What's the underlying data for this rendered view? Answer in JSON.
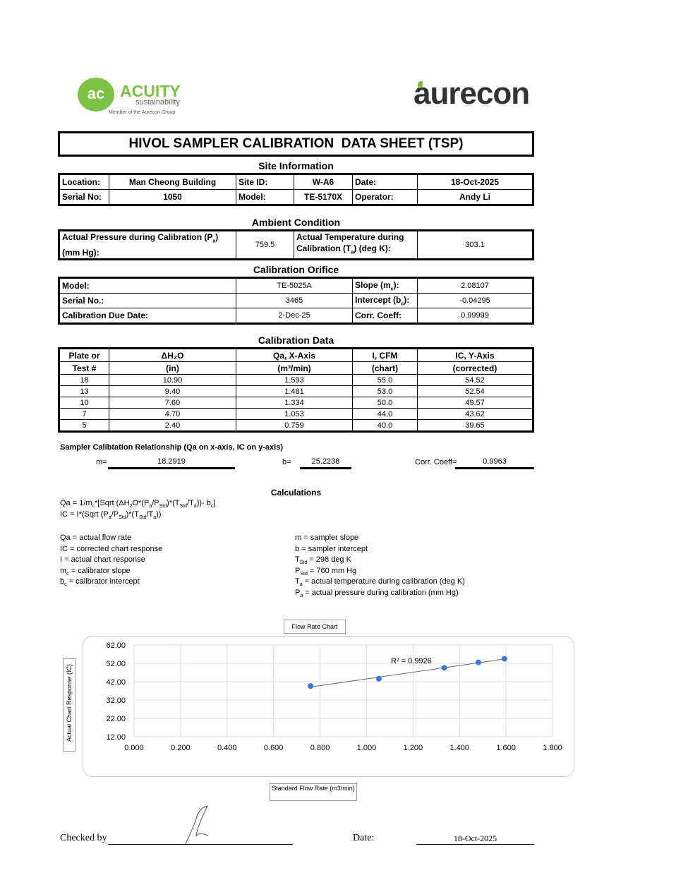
{
  "logos": {
    "acuity_name": "ACUITY",
    "acuity_sub": "sustainability",
    "acuity_member": "Member of the Aurecon Group",
    "aurecon": "aurecon"
  },
  "title": "HIVOL SAMPLER CALIBRATION  DATA SHEET (TSP)",
  "site": {
    "heading": "Site Information",
    "location_label": "Location:",
    "location": "Man Cheong Building",
    "site_id_label": "Site ID:",
    "site_id": "W-A6",
    "date_label": "Date:",
    "date": "18-Oct-2025",
    "serial_label": "Serial No:",
    "serial": "1050",
    "model_label": "Model:",
    "model": "TE-5170X",
    "operator_label": "Operator:",
    "operator": "Andy Li"
  },
  "ambient": {
    "heading": "Ambient Condition",
    "pressure_label_1": "Actual Pressure during Calibration (P",
    "pressure_label_sub": "a",
    "pressure_label_2": ")",
    "pressure_label_3": "(mm Hg):",
    "pressure": "759.5",
    "temp_label_1": "Actual Temperature during",
    "temp_label_2": "Calibration (T",
    "temp_label_sub": "a",
    "temp_label_3": ") (deg K):",
    "temperature": "303.1"
  },
  "orifice": {
    "heading": "Calibration Orifice",
    "model_label": "Model:",
    "model": "TE-5025A",
    "slope_label": "Slope (m",
    "slope_sub": "c",
    "slope_end": "):",
    "slope": "2.08107",
    "serial_label": "Serial No.:",
    "serial": "3465",
    "intercept_label": "Intercept (b",
    "intercept_sub": "c",
    "intercept_end": "):",
    "intercept": "-0.04295",
    "due_label": "Calibration Due Date:",
    "due": "2-Dec-25",
    "corr_label": "Corr. Coeff:",
    "corr": "0.99999"
  },
  "cal_data": {
    "heading": "Calibration Data",
    "headers1": [
      "Plate or",
      "ΔH₂O",
      "Qa, X-Axis",
      "I, CFM",
      "IC, Y-Axis"
    ],
    "headers2": [
      "Test #",
      "(in)",
      "(m³/min)",
      "(chart)",
      "(corrected)"
    ],
    "rows": [
      [
        "18",
        "10.90",
        "1.593",
        "55.0",
        "54.52"
      ],
      [
        "13",
        "9.40",
        "1.481",
        "53.0",
        "52.54"
      ],
      [
        "10",
        "7.60",
        "1.334",
        "50.0",
        "49.57"
      ],
      [
        "7",
        "4.70",
        "1.053",
        "44.0",
        "43.62"
      ],
      [
        "5",
        "2.40",
        "0.759",
        "40.0",
        "39.65"
      ]
    ]
  },
  "relationship": {
    "heading": "Sampler Calibtation Relationship (Qa on x-axis, IC on y-axis)",
    "m_label": "m=",
    "m": "18.2919",
    "b_label": "b=",
    "b": "25.2238",
    "corr_label": "Corr. Coeff=",
    "corr": "0.9963"
  },
  "calculations": {
    "heading": "Calculations",
    "left": [
      "Qa = actual flow rate",
      "IC = corrected chart response",
      "I = actual chart response",
      "m_c  = calibrator slope",
      "b_c  = calibrator intercept"
    ],
    "right": [
      "m = sampler slope",
      "b  = sampler intercept",
      "T_Std = 298 deg K",
      "P_Std = 760 mm Hg",
      "T_a = actual temperature during calibration (deg K)",
      "P_a = actual pressure during calibration (mm Hg)"
    ]
  },
  "chart_data": {
    "type": "scatter",
    "title": "Flow Rate Chart",
    "xlabel": "Standard Flow Rate (m3/min)",
    "ylabel": "Actual Chart Response (IC)",
    "xlim": [
      0,
      1.8
    ],
    "ylim": [
      12,
      62
    ],
    "x_ticks": [
      "0.000",
      "0.200",
      "0.400",
      "0.600",
      "0.800",
      "1.000",
      "1.200",
      "1.400",
      "1.600",
      "1.800"
    ],
    "y_ticks": [
      "62.00",
      "52.00",
      "42.00",
      "32.00",
      "22.00",
      "12.00"
    ],
    "x": [
      1.593,
      1.481,
      1.334,
      1.053,
      0.759
    ],
    "y": [
      54.52,
      52.54,
      49.57,
      43.62,
      39.65
    ],
    "trendline": {
      "slope": 18.2919,
      "intercept": 25.2238,
      "label": "R² = 0.9926"
    },
    "grid": true,
    "point_color": "#3a78d8"
  },
  "footer": {
    "checked_label": "Checked by",
    "date_label": "Date:",
    "date": "18-Oct-2025"
  }
}
